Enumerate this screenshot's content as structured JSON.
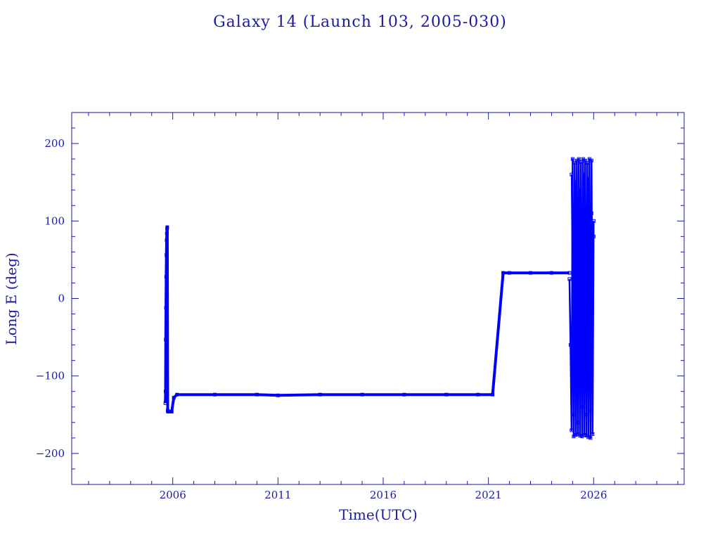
{
  "chart_data": {
    "type": "line",
    "title": "Galaxy 14 (Launch 103, 2005-030)",
    "xlabel": "Time(UTC)",
    "ylabel": "Long E (deg)",
    "xlim": [
      2001.2,
      2030.3
    ],
    "ylim": [
      -240,
      240
    ],
    "x_ticks": [
      {
        "value": 2006,
        "label": "2006"
      },
      {
        "value": 2011,
        "label": "2011"
      },
      {
        "value": 2016,
        "label": "2016"
      },
      {
        "value": 2021,
        "label": "2021"
      },
      {
        "value": 2026,
        "label": "2026"
      }
    ],
    "y_ticks": [
      {
        "value": 200,
        "label": "200"
      },
      {
        "value": 100,
        "label": "100"
      },
      {
        "value": 0,
        "label": "0"
      },
      {
        "value": -100,
        "label": "−100"
      },
      {
        "value": -200,
        "label": "−200"
      }
    ],
    "grid": false,
    "color": "#0000ff",
    "series": [
      {
        "x": [
          2005.65,
          2005.66,
          2005.67,
          2005.68,
          2005.69,
          2005.7,
          2005.71,
          2005.72,
          2005.73,
          2005.74,
          2005.76,
          2005.78,
          2005.8,
          2005.85,
          2005.95,
          2006.05,
          2006.2,
          2008.0,
          2010.0,
          2011.0,
          2013.0,
          2015.0,
          2017.0,
          2019.0,
          2020.5,
          2021.2,
          2021.7,
          2022.0,
          2023.0,
          2024.0,
          2024.85
        ],
        "y": [
          -135,
          -120,
          -53,
          -12,
          28,
          56,
          75,
          84,
          90,
          92,
          -145,
          -146,
          -146,
          -146,
          -146,
          -128,
          -124,
          -124,
          -124,
          -125,
          -124,
          -124,
          -124,
          -124,
          -124,
          -124,
          33,
          33,
          33,
          33,
          33
        ]
      },
      {
        "x": [
          2024.85,
          2024.9,
          2024.95,
          2025.0,
          2025.05,
          2025.1,
          2025.15,
          2025.2,
          2025.25,
          2025.3,
          2025.35,
          2025.4,
          2025.45,
          2025.5,
          2025.55,
          2025.6,
          2025.65,
          2025.7,
          2025.75,
          2025.8,
          2025.85,
          2025.9,
          2025.95,
          2026.0
        ],
        "y": [
          25,
          -60,
          -170,
          180,
          -178,
          175,
          -176,
          178,
          -175,
          180,
          -177,
          176,
          -178,
          180,
          -176,
          178,
          -177,
          175,
          -179,
          180,
          -180,
          178,
          -175,
          100
        ]
      },
      {
        "x": [
          2024.95,
          2025.05,
          2025.15,
          2025.25,
          2025.35,
          2025.45,
          2025.55,
          2025.65,
          2025.75,
          2025.85,
          2025.95
        ],
        "y": [
          160,
          -150,
          150,
          -160,
          140,
          -140,
          160,
          -150,
          155,
          -145,
          90
        ]
      },
      {
        "x": [
          2025.0,
          2025.1,
          2025.2,
          2025.3,
          2025.4,
          2025.5,
          2025.6,
          2025.7,
          2025.8,
          2025.9,
          2026.0
        ],
        "y": [
          -80,
          100,
          -90,
          40,
          -20,
          60,
          -100,
          30,
          -60,
          110,
          80
        ]
      }
    ]
  }
}
